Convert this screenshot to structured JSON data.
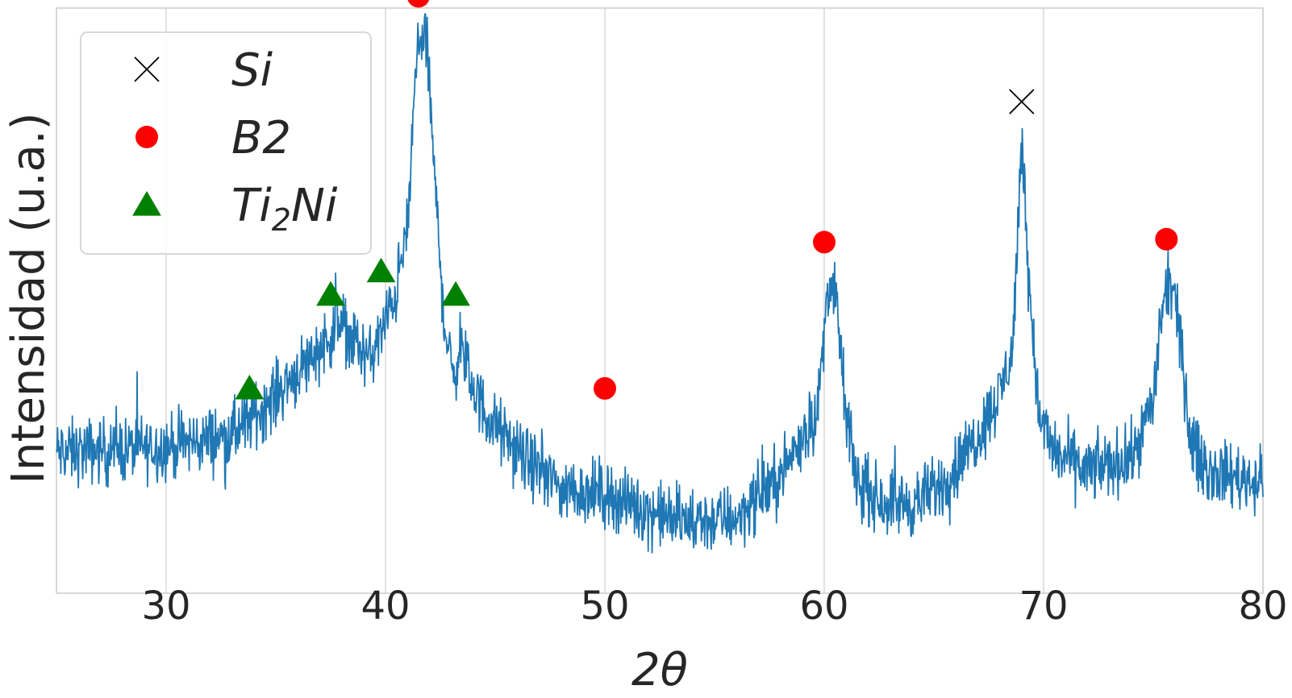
{
  "chart_data": {
    "type": "line",
    "title": "",
    "xlabel": "2θ",
    "ylabel": "Intensidad (u.a.)",
    "xlim": [
      25,
      80
    ],
    "ylim": [
      0,
      1
    ],
    "x_ticks": [
      30,
      40,
      50,
      60,
      70,
      80
    ],
    "x_tick_labels": [
      "30",
      "40",
      "50",
      "60",
      "70",
      "80"
    ],
    "y_ticks_shown": false,
    "grid": true,
    "legend_position": "top-left",
    "series": [
      {
        "color": "#1f77b4",
        "profile": [
          [
            25.0,
            0.24
          ],
          [
            30.0,
            0.25
          ],
          [
            33.0,
            0.27
          ],
          [
            34.5,
            0.32
          ],
          [
            36.0,
            0.38
          ],
          [
            37.5,
            0.44
          ],
          [
            38.0,
            0.46
          ],
          [
            38.8,
            0.42
          ],
          [
            39.3,
            0.4
          ],
          [
            40.0,
            0.46
          ],
          [
            40.5,
            0.52
          ],
          [
            41.0,
            0.62
          ],
          [
            41.3,
            0.84
          ],
          [
            41.6,
            0.97
          ],
          [
            41.9,
            0.93
          ],
          [
            42.3,
            0.67
          ],
          [
            42.7,
            0.46
          ],
          [
            43.1,
            0.36
          ],
          [
            43.4,
            0.43
          ],
          [
            43.8,
            0.37
          ],
          [
            44.5,
            0.31
          ],
          [
            46.0,
            0.24
          ],
          [
            48.0,
            0.18
          ],
          [
            50.0,
            0.17
          ],
          [
            52.0,
            0.14
          ],
          [
            54.0,
            0.12
          ],
          [
            56.0,
            0.13
          ],
          [
            58.0,
            0.2
          ],
          [
            59.0,
            0.27
          ],
          [
            59.7,
            0.31
          ],
          [
            60.2,
            0.54
          ],
          [
            60.6,
            0.48
          ],
          [
            61.0,
            0.3
          ],
          [
            61.5,
            0.19
          ],
          [
            62.5,
            0.16
          ],
          [
            64.0,
            0.15
          ],
          [
            65.5,
            0.19
          ],
          [
            67.0,
            0.27
          ],
          [
            68.0,
            0.34
          ],
          [
            68.6,
            0.42
          ],
          [
            69.0,
            0.78
          ],
          [
            69.4,
            0.5
          ],
          [
            69.8,
            0.3
          ],
          [
            70.5,
            0.24
          ],
          [
            72.0,
            0.21
          ],
          [
            74.0,
            0.23
          ],
          [
            75.0,
            0.33
          ],
          [
            75.4,
            0.48
          ],
          [
            75.8,
            0.54
          ],
          [
            76.2,
            0.44
          ],
          [
            76.7,
            0.26
          ],
          [
            77.5,
            0.21
          ],
          [
            80.0,
            0.19
          ]
        ]
      }
    ],
    "markers": [
      {
        "phase": "Si",
        "symbol": "x",
        "color": "#000000",
        "x": 69.0,
        "y": 0.84
      },
      {
        "phase": "B2",
        "symbol": "circle",
        "color": "#ff0000",
        "x": 41.5,
        "y": 1.02
      },
      {
        "phase": "B2",
        "symbol": "circle",
        "color": "#ff0000",
        "x": 50.0,
        "y": 0.35
      },
      {
        "phase": "B2",
        "symbol": "circle",
        "color": "#ff0000",
        "x": 60.0,
        "y": 0.6
      },
      {
        "phase": "B2",
        "symbol": "circle",
        "color": "#ff0000",
        "x": 75.6,
        "y": 0.605
      },
      {
        "phase": "Ti2Ni",
        "symbol": "triangle",
        "color": "#008000",
        "x": 33.8,
        "y": 0.35
      },
      {
        "phase": "Ti2Ni",
        "symbol": "triangle",
        "color": "#008000",
        "x": 37.5,
        "y": 0.51
      },
      {
        "phase": "Ti2Ni",
        "symbol": "triangle",
        "color": "#008000",
        "x": 39.8,
        "y": 0.55
      },
      {
        "phase": "Ti2Ni",
        "symbol": "triangle",
        "color": "#008000",
        "x": 43.2,
        "y": 0.51
      }
    ],
    "legend": [
      {
        "symbol": "x",
        "color": "#000000",
        "label": "Si",
        "base": "Si",
        "sub": ""
      },
      {
        "symbol": "circle",
        "color": "#ff0000",
        "label": "B2",
        "base": "B2",
        "sub": ""
      },
      {
        "symbol": "triangle",
        "color": "#008000",
        "label": "Ti2Ni",
        "base": "Ti",
        "sub": "2",
        "tail": "Ni"
      }
    ]
  }
}
